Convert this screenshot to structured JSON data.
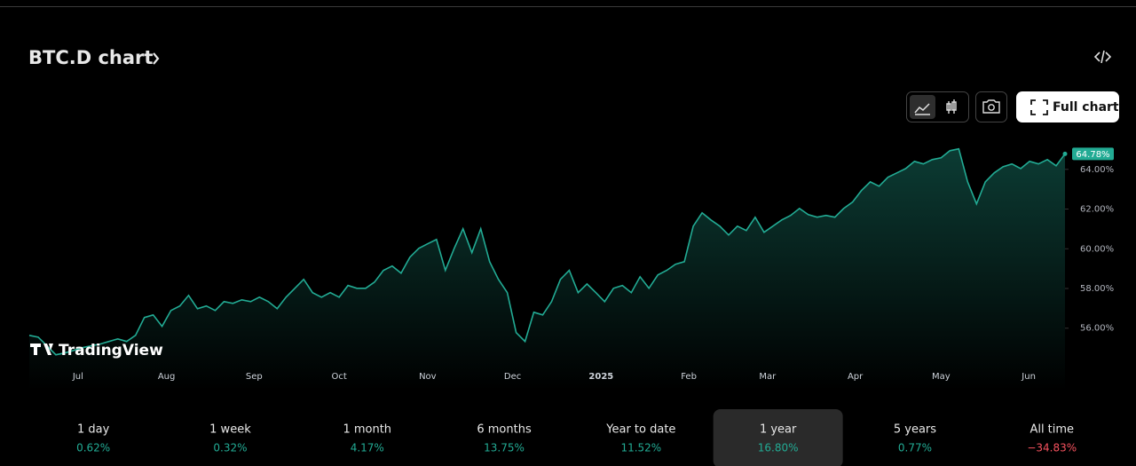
{
  "header": {
    "title": "BTC.D chart"
  },
  "toolbar": {
    "full_chart": "Full chart"
  },
  "watermark": "TradingView",
  "chart_data": {
    "type": "area",
    "color": "#22ab94",
    "values": [
      55.64,
      55.55,
      55.11,
      54.66,
      54.75,
      54.88,
      55.02,
      55.11,
      55.2,
      55.33,
      55.46,
      55.33,
      55.64,
      56.54,
      56.67,
      56.09,
      56.89,
      57.12,
      57.65,
      56.98,
      57.12,
      56.89,
      57.34,
      57.25,
      57.43,
      57.34,
      57.56,
      57.34,
      56.98,
      57.56,
      58.01,
      58.46,
      57.79,
      57.56,
      57.79,
      57.56,
      58.15,
      58.01,
      58.01,
      58.32,
      58.91,
      59.13,
      58.77,
      59.58,
      60.02,
      60.25,
      60.47,
      58.91,
      60.02,
      61.01,
      59.8,
      61.01,
      59.35,
      58.46,
      57.79,
      55.78,
      55.33,
      56.8,
      56.67,
      57.34,
      58.46,
      58.91,
      57.79,
      58.23,
      57.79,
      57.34,
      58.01,
      58.15,
      57.79,
      58.59,
      58.01,
      58.68,
      58.91,
      59.22,
      59.35,
      61.14,
      61.81,
      61.45,
      61.14,
      60.69,
      61.14,
      60.92,
      61.59,
      60.83,
      61.14,
      61.45,
      61.68,
      62.03,
      61.72,
      61.59,
      61.68,
      61.59,
      62.03,
      62.35,
      62.93,
      63.37,
      63.15,
      63.6,
      63.82,
      64.04,
      64.4,
      64.27,
      64.49,
      64.58,
      64.94,
      65.03,
      63.37,
      62.26,
      63.37,
      63.82,
      64.13,
      64.27,
      64.04,
      64.4,
      64.27,
      64.49,
      64.18,
      64.78
    ],
    "last_value": 64.78,
    "last_label": "64.78%",
    "ylim": [
      54.2,
      65.6
    ],
    "yticks": [
      {
        "value": 56,
        "label": "56.00%"
      },
      {
        "value": 58,
        "label": "58.00%"
      },
      {
        "value": 60,
        "label": "60.00%"
      },
      {
        "value": 62,
        "label": "62.00%"
      },
      {
        "value": 64,
        "label": "64.00%"
      }
    ],
    "xticks": [
      {
        "value": 5.5,
        "label": "Jul"
      },
      {
        "value": 15.5,
        "label": "Aug"
      },
      {
        "value": 25.4,
        "label": "Sep"
      },
      {
        "value": 35,
        "label": "Oct"
      },
      {
        "value": 45,
        "label": "Nov"
      },
      {
        "value": 54.6,
        "label": "Dec"
      },
      {
        "value": 64.6,
        "label": "2025"
      },
      {
        "value": 74.5,
        "label": "Feb"
      },
      {
        "value": 83.4,
        "label": "Mar"
      },
      {
        "value": 93.3,
        "label": "Apr"
      },
      {
        "value": 103,
        "label": "May"
      },
      {
        "value": 112.9,
        "label": "Jun"
      }
    ]
  },
  "periods": [
    {
      "label": "1 day",
      "value": 0.62,
      "value_label": "0.62%"
    },
    {
      "label": "1 week",
      "value": 0.32,
      "value_label": "0.32%"
    },
    {
      "label": "1 month",
      "value": 4.17,
      "value_label": "4.17%"
    },
    {
      "label": "6 months",
      "value": 13.75,
      "value_label": "13.75%"
    },
    {
      "label": "Year to date",
      "value": 11.52,
      "value_label": "11.52%"
    },
    {
      "label": "1 year",
      "value": 16.8,
      "value_label": "16.80%",
      "active": true
    },
    {
      "label": "5 years",
      "value": 0.77,
      "value_label": "0.77%"
    },
    {
      "label": "All time",
      "value": -34.83,
      "value_label": "−34.83%"
    }
  ]
}
